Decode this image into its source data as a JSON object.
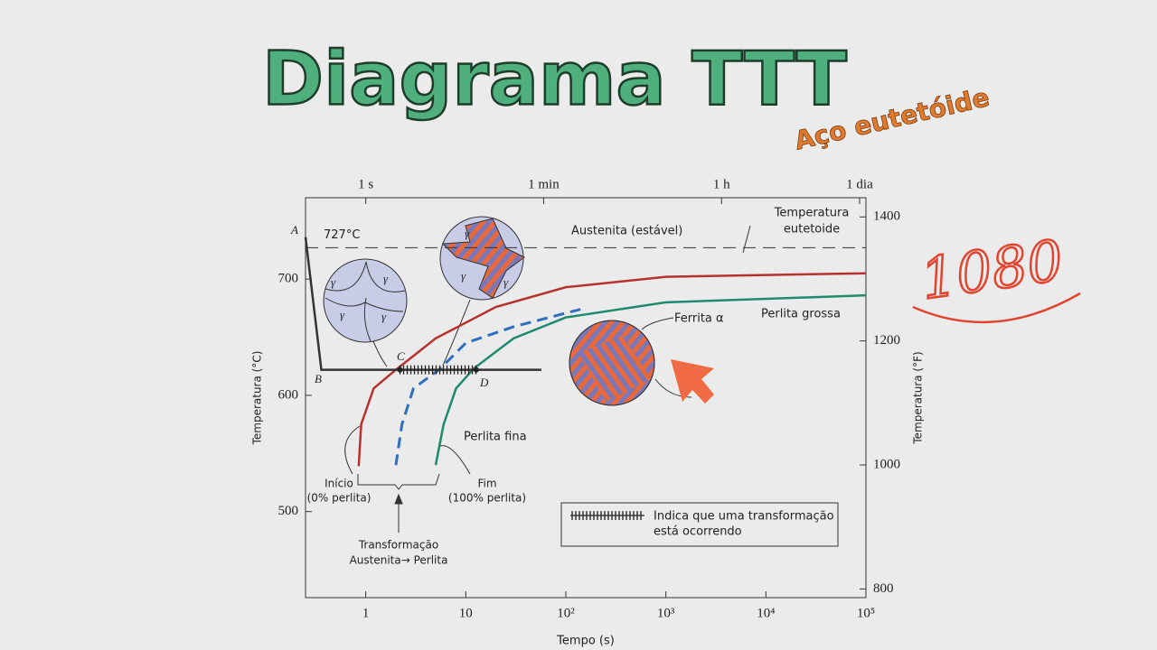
{
  "slide": {
    "title": "Diagrama TTT",
    "subtitle": "Aço eutetóide",
    "handwriting": "1080"
  },
  "chart_data": {
    "type": "line",
    "xlabel": "Tempo (s)",
    "ylabel": "Temperatura (°C)",
    "y2label": "Temperatura (°F)",
    "xscale": "log",
    "xlim": [
      0.25,
      100000
    ],
    "xticks": [
      1,
      10,
      {
        "value": 100,
        "label": "10²"
      },
      {
        "value": 1000,
        "label": "10³"
      },
      {
        "value": 10000,
        "label": "10⁴"
      },
      {
        "value": 100000,
        "label": "10⁵"
      }
    ],
    "x2ticks": [
      {
        "value": 1,
        "label": "1 s"
      },
      {
        "value": 60,
        "label": "1 min"
      },
      {
        "value": 3600,
        "label": "1 h"
      },
      {
        "value": 86400,
        "label": "1 dia"
      }
    ],
    "ylim": [
      426,
      770
    ],
    "yticks": [
      500,
      600,
      700
    ],
    "y2lim": [
      786,
      1431
    ],
    "y2ticks": [
      800,
      1000,
      1200,
      1400
    ],
    "eutectoid": {
      "value": 727,
      "label": "727°C"
    },
    "series": [
      {
        "color": "#b5322e",
        "dash": false,
        "x": [
          0.85,
          0.9,
          1.2,
          2,
          5,
          20,
          100,
          1000,
          100000
        ],
        "values": [
          539,
          575,
          606,
          622,
          649,
          676,
          693,
          702,
          705
        ]
      },
      {
        "color": "#2f6fc0",
        "dash": true,
        "x": [
          2,
          2.3,
          3,
          5.4,
          10,
          30,
          140
        ],
        "values": [
          540,
          575,
          606,
          622,
          645,
          659,
          674
        ]
      },
      {
        "color": "#1f8a6e",
        "dash": false,
        "x": [
          5,
          6,
          8,
          12,
          30,
          100,
          1000,
          100000
        ],
        "values": [
          540,
          575,
          606,
          623,
          649,
          667,
          680,
          686
        ]
      },
      {
        "color": "#333333",
        "dash": false,
        "x": [
          0.25,
          0.36,
          57
        ],
        "values": [
          736,
          622,
          622
        ]
      }
    ],
    "transformation": {
      "x": [
        2.2,
        12.7
      ],
      "value": 622
    },
    "annotations": {
      "a": "A",
      "b": "B",
      "c": "C",
      "d": "D",
      "austenite": "Austenita (estável)",
      "eutectoid_1": "Temperatura",
      "eutectoid_2": "eutetoide",
      "ferrite": "Ferrita α",
      "coarse": "Perlita grossa",
      "fine": "Perlita fina",
      "start_1": "Início",
      "start_2": "(0% perlita)",
      "end_1": "Fim",
      "end_2": "(100% perlita)",
      "transf_1": "Transformação",
      "transf_2": "Austenita→ Perlita",
      "legend_1": "Indica que uma transformação",
      "legend_2": "está ocorrendo",
      "gamma": [
        "γ",
        "γ",
        "γ",
        "γ",
        "γ",
        "γ",
        "γ"
      ]
    }
  }
}
